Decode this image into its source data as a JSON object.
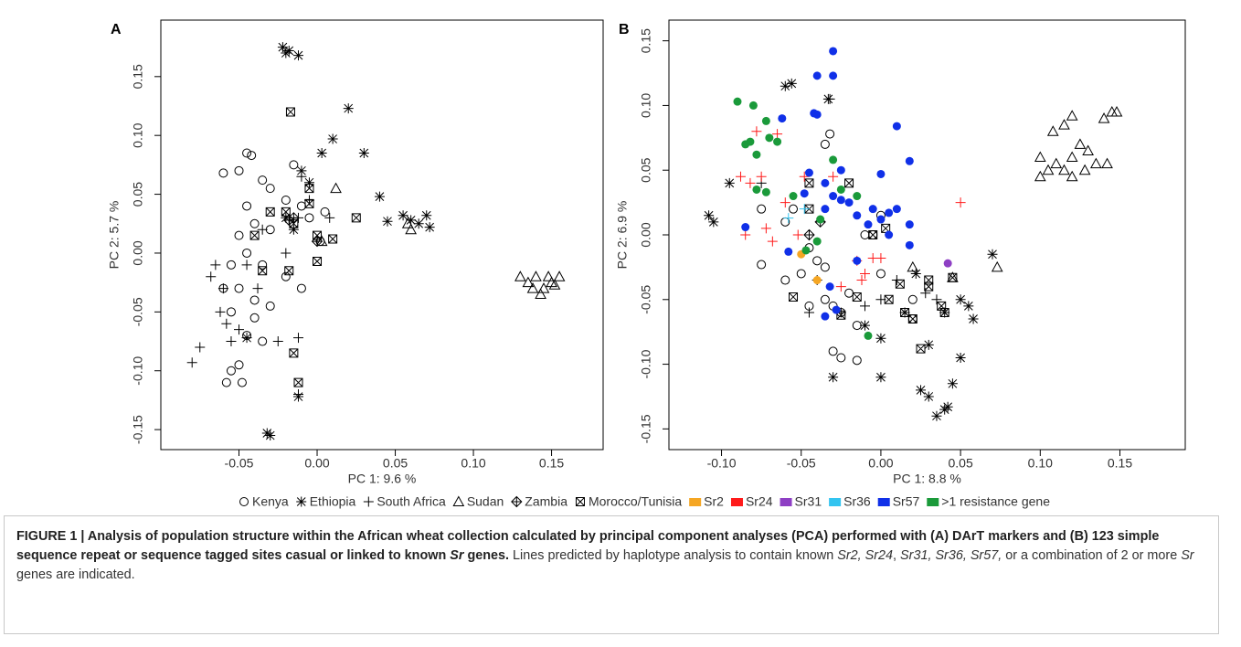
{
  "chart_data": [
    {
      "type": "scatter",
      "panel": "A",
      "xlabel": "PC 1: 9.6 %",
      "ylabel": "PC 2: 5.7 %",
      "xlim": [
        -0.1,
        0.183
      ],
      "ylim": [
        -0.167,
        0.198
      ],
      "xticks": [
        -0.05,
        {
          "value": 0,
          "label": "0.00"
        },
        0.05,
        {
          "value": 0.1,
          "label": "0.10"
        },
        0.15
      ],
      "yticks": [
        -0.15,
        {
          "value": -0.1,
          "label": "-0.10"
        },
        -0.05,
        {
          "value": 0,
          "label": "0.00"
        },
        0.05,
        {
          "value": 0.1,
          "label": "0.10"
        },
        0.15
      ],
      "series": [
        {
          "group": 0,
          "x": [
            -0.045,
            -0.042,
            -0.05,
            -0.06,
            -0.035,
            -0.03,
            -0.045,
            -0.02,
            -0.01,
            -0.04,
            -0.05,
            -0.03,
            -0.005,
            0.005,
            -0.045,
            -0.055,
            -0.035,
            -0.02,
            -0.05,
            -0.04,
            -0.03,
            -0.055,
            -0.04,
            -0.045,
            -0.035,
            -0.055,
            -0.058,
            -0.048,
            -0.05,
            -0.01,
            0.002,
            -0.015,
            -0.06
          ],
          "y": [
            0.085,
            0.083,
            0.07,
            0.068,
            0.062,
            0.055,
            0.04,
            0.045,
            0.04,
            0.025,
            0.015,
            0.02,
            0.03,
            0.035,
            0.0,
            -0.01,
            -0.01,
            -0.02,
            -0.03,
            -0.04,
            -0.045,
            -0.05,
            -0.055,
            -0.07,
            -0.075,
            -0.1,
            -0.11,
            -0.11,
            -0.095,
            -0.03,
            0.01,
            0.075,
            -0.03
          ]
        },
        {
          "group": 1,
          "x": [
            -0.022,
            -0.02,
            -0.018,
            -0.012,
            0.02,
            0.01,
            0.03,
            0.003,
            0.04,
            0.045,
            0.055,
            0.06,
            0.065,
            0.07,
            0.072,
            -0.01,
            -0.005,
            -0.03,
            -0.032,
            -0.012,
            -0.045,
            -0.02,
            -0.015
          ],
          "y": [
            0.175,
            0.17,
            0.172,
            0.168,
            0.123,
            0.097,
            0.085,
            0.085,
            0.048,
            0.027,
            0.032,
            0.028,
            0.025,
            0.032,
            0.022,
            0.07,
            0.06,
            -0.155,
            -0.153,
            -0.122,
            -0.072,
            0.03,
            0.02
          ]
        },
        {
          "group": 2,
          "x": [
            -0.08,
            -0.075,
            -0.068,
            -0.065,
            -0.06,
            -0.062,
            -0.058,
            -0.055,
            -0.05,
            -0.045,
            -0.038,
            -0.025,
            -0.012,
            -0.012,
            -0.035,
            -0.02,
            -0.005,
            0.008,
            -0.012,
            -0.01
          ],
          "y": [
            -0.093,
            -0.08,
            -0.02,
            -0.01,
            -0.03,
            -0.05,
            -0.06,
            -0.075,
            -0.065,
            -0.01,
            -0.03,
            -0.075,
            -0.072,
            -0.12,
            0.02,
            0.0,
            0.045,
            0.03,
            0.03,
            0.065
          ]
        },
        {
          "group": 3,
          "x": [
            0.13,
            0.135,
            0.14,
            0.145,
            0.148,
            0.15,
            0.155,
            0.138,
            0.143,
            0.152,
            0.06,
            0.058,
            0.012,
            0.003
          ],
          "y": [
            -0.02,
            -0.025,
            -0.02,
            -0.03,
            -0.02,
            -0.025,
            -0.02,
            -0.03,
            -0.035,
            -0.027,
            0.02,
            0.025,
            0.055,
            0.01
          ]
        },
        {
          "group": 4,
          "x": [
            -0.018,
            -0.015,
            0.0
          ],
          "y": [
            0.028,
            0.03,
            0.01
          ]
        },
        {
          "group": 5,
          "x": [
            -0.017,
            -0.005,
            -0.005,
            -0.015,
            -0.02,
            0.0,
            0.01,
            0.025,
            -0.035,
            -0.018,
            0.0,
            -0.015,
            -0.012,
            -0.04,
            -0.03
          ],
          "y": [
            0.12,
            0.055,
            0.042,
            0.025,
            0.035,
            0.015,
            0.012,
            0.03,
            -0.015,
            -0.015,
            -0.007,
            -0.085,
            -0.11,
            0.015,
            0.035
          ]
        }
      ]
    },
    {
      "type": "scatter",
      "panel": "B",
      "xlabel": "PC 1: 8.8 %",
      "ylabel": "PC 2: 6.9 %",
      "xlim": [
        -0.133,
        0.191
      ],
      "ylim": [
        -0.166,
        0.166
      ],
      "xticks": [
        {
          "value": -0.1,
          "label": "-0.10"
        },
        -0.05,
        {
          "value": 0,
          "label": "0.00"
        },
        0.05,
        {
          "value": 0.1,
          "label": "0.10"
        },
        0.15
      ],
      "yticks": [
        -0.15,
        {
          "value": -0.1,
          "label": "-0.10"
        },
        -0.05,
        {
          "value": 0,
          "label": "0.00"
        },
        0.05,
        {
          "value": 0.1,
          "label": "0.10"
        },
        0.15
      ],
      "series": [
        {
          "group": 0,
          "x": [
            -0.032,
            -0.035,
            -0.06,
            -0.075,
            -0.06,
            -0.05,
            -0.04,
            -0.035,
            -0.03,
            -0.025,
            -0.02,
            -0.015,
            -0.03,
            -0.025,
            -0.015,
            -0.005,
            0.0,
            0.0,
            0.02,
            -0.045,
            -0.035,
            -0.055,
            -0.01,
            0.02,
            -0.045,
            -0.075
          ],
          "y": [
            0.078,
            0.07,
            0.01,
            -0.023,
            -0.035,
            -0.03,
            -0.02,
            -0.05,
            -0.055,
            -0.06,
            -0.045,
            -0.07,
            -0.09,
            -0.095,
            -0.097,
            0.0,
            0.015,
            -0.03,
            -0.05,
            -0.01,
            -0.025,
            0.02,
            0.0,
            -0.065,
            -0.055,
            0.02
          ]
        },
        {
          "group": 1,
          "x": [
            -0.108,
            -0.105,
            -0.095,
            -0.06,
            -0.056,
            -0.033,
            0.03,
            0.025,
            0.03,
            0.035,
            0.04,
            0.045,
            0.05,
            0.042,
            0.04,
            0.05,
            0.055,
            0.058,
            0.07,
            -0.03,
            0.0,
            0.0,
            -0.01,
            0.015,
            0.022
          ],
          "y": [
            0.015,
            0.01,
            0.04,
            0.115,
            0.117,
            0.105,
            -0.085,
            -0.12,
            -0.125,
            -0.14,
            -0.135,
            -0.115,
            -0.095,
            -0.133,
            -0.06,
            -0.05,
            -0.055,
            -0.065,
            -0.015,
            -0.11,
            -0.11,
            -0.08,
            -0.07,
            -0.06,
            -0.03
          ]
        },
        {
          "group": 2,
          "x": [
            -0.032,
            -0.04,
            -0.045,
            -0.01,
            0.0,
            -0.025,
            0.01,
            0.028,
            0.035,
            -0.075
          ],
          "y": [
            0.105,
            -0.035,
            -0.06,
            -0.055,
            -0.05,
            -0.06,
            -0.035,
            -0.045,
            -0.05,
            0.04
          ]
        },
        {
          "group": 3,
          "x": [
            0.1,
            0.105,
            0.11,
            0.115,
            0.12,
            0.125,
            0.13,
            0.135,
            0.14,
            0.145,
            0.148,
            0.12,
            0.115,
            0.108,
            0.1,
            0.12,
            0.128,
            0.142,
            0.073,
            0.02,
            0.045
          ],
          "y": [
            0.045,
            0.05,
            0.055,
            0.05,
            0.06,
            0.07,
            0.065,
            0.055,
            0.09,
            0.095,
            0.095,
            0.092,
            0.085,
            0.08,
            0.06,
            0.045,
            0.05,
            0.055,
            -0.025,
            -0.025,
            -0.033
          ]
        },
        {
          "group": 4,
          "x": [
            -0.045,
            -0.038
          ],
          "y": [
            0.0,
            0.01
          ]
        },
        {
          "group": 5,
          "x": [
            -0.045,
            -0.045,
            -0.02,
            -0.005,
            0.003,
            -0.055,
            -0.025,
            -0.015,
            0.005,
            0.012,
            0.015,
            0.02,
            0.025,
            0.03,
            0.03,
            0.038,
            0.04,
            0.045
          ],
          "y": [
            0.04,
            0.02,
            0.04,
            0.0,
            0.005,
            -0.048,
            -0.062,
            -0.048,
            -0.05,
            -0.038,
            -0.06,
            -0.065,
            -0.088,
            -0.035,
            -0.04,
            -0.055,
            -0.06,
            -0.033
          ]
        },
        {
          "group": 6,
          "x": [
            -0.05,
            -0.04
          ],
          "y": [
            -0.015,
            -0.035
          ]
        },
        {
          "group": 7,
          "x": [
            -0.088,
            -0.082,
            -0.075,
            -0.078,
            -0.065,
            -0.085,
            -0.072,
            -0.068,
            -0.06,
            -0.048,
            -0.052,
            -0.03,
            -0.015,
            -0.01,
            -0.005,
            0.0,
            -0.025,
            0.05,
            -0.012
          ],
          "y": [
            0.045,
            0.04,
            0.045,
            0.08,
            0.078,
            0.0,
            0.005,
            -0.005,
            0.025,
            0.045,
            0.0,
            0.045,
            -0.02,
            -0.03,
            -0.018,
            -0.018,
            -0.04,
            0.025,
            -0.035
          ]
        },
        {
          "group": 8,
          "x": [
            0.042
          ],
          "y": [
            -0.022
          ]
        },
        {
          "group": 9,
          "x": [
            -0.058,
            -0.048
          ],
          "y": [
            0.013,
            0.02
          ]
        },
        {
          "group": 10,
          "x": [
            -0.03,
            -0.03,
            -0.04,
            -0.04,
            -0.042,
            -0.045,
            -0.035,
            -0.025,
            -0.03,
            -0.025,
            -0.02,
            -0.015,
            -0.008,
            0.0,
            0.01,
            0.018,
            0.005,
            0.01,
            0.018,
            0.018,
            0.005,
            -0.062,
            -0.085,
            -0.058,
            -0.048,
            -0.035,
            -0.032,
            -0.035,
            -0.028,
            -0.015,
            0.0,
            -0.005
          ],
          "y": [
            0.142,
            0.123,
            0.123,
            0.093,
            0.094,
            0.048,
            0.04,
            0.05,
            0.03,
            0.027,
            0.025,
            0.015,
            0.008,
            0.047,
            0.084,
            0.057,
            0.017,
            0.02,
            0.008,
            -0.008,
            0.0,
            0.09,
            0.006,
            -0.013,
            0.032,
            0.02,
            -0.04,
            -0.063,
            -0.058,
            -0.02,
            0.012,
            0.02
          ]
        },
        {
          "group": 11,
          "x": [
            -0.085,
            -0.082,
            -0.078,
            -0.07,
            -0.072,
            -0.065,
            -0.09,
            -0.08,
            -0.055,
            -0.03,
            -0.025,
            -0.015,
            -0.038,
            -0.04,
            -0.047,
            -0.008,
            -0.072,
            -0.078
          ],
          "y": [
            0.07,
            0.072,
            0.062,
            0.075,
            0.088,
            0.072,
            0.103,
            0.1,
            0.03,
            0.058,
            0.035,
            0.03,
            0.012,
            -0.005,
            -0.012,
            -0.078,
            0.033,
            0.035
          ]
        }
      ]
    }
  ],
  "legend": {
    "items": [
      {
        "name": "Kenya",
        "marker": "circle",
        "color": "#000000"
      },
      {
        "name": "Ethiopia",
        "marker": "asterisk",
        "color": "#000000"
      },
      {
        "name": "South Africa",
        "marker": "plus",
        "color": "#000000"
      },
      {
        "name": "Sudan",
        "marker": "triangle",
        "color": "#000000"
      },
      {
        "name": "Zambia",
        "marker": "diamond-plus",
        "color": "#000000"
      },
      {
        "name": "Morocco/Tunisia",
        "marker": "box-x",
        "color": "#000000"
      },
      {
        "name": "Sr2",
        "marker": "dot",
        "color": "#f5a623",
        "legend_symbol": "swatch"
      },
      {
        "name": "Sr24",
        "marker": "plus",
        "color": "#ff1a1a",
        "legend_symbol": "swatch"
      },
      {
        "name": "Sr31",
        "marker": "dot",
        "color": "#8e3fc4",
        "legend_symbol": "swatch"
      },
      {
        "name": "Sr36",
        "marker": "plus",
        "color": "#33c4f0",
        "legend_symbol": "swatch"
      },
      {
        "name": "Sr57",
        "marker": "dot",
        "color": "#1030e8",
        "legend_symbol": "swatch"
      },
      {
        "name": ">1 resistance gene",
        "marker": "dot",
        "color": "#1a9a3a",
        "legend_symbol": "swatch"
      }
    ]
  },
  "caption": {
    "runs": [
      {
        "text": "FIGURE 1 | Analysis of population structure within the African wheat collection calculated by principal component analyses (PCA) performed with (A) DArT markers and (B) 123 simple sequence repeat or sequence tagged sites casual or linked to known ",
        "style": "bold"
      },
      {
        "text": "Sr",
        "style": "bold-italic"
      },
      {
        "text": " genes.",
        "style": "bold"
      },
      {
        "text": " Lines predicted by haplotype analysis to contain known ",
        "style": "normal"
      },
      {
        "text": "Sr2, Sr24",
        "style": "italic"
      },
      {
        "text": ", ",
        "style": "normal"
      },
      {
        "text": "Sr31, Sr36, Sr57,",
        "style": "italic"
      },
      {
        "text": " or a combination of 2 or more ",
        "style": "normal"
      },
      {
        "text": "Sr",
        "style": "italic"
      },
      {
        "text": " genes are indicated.",
        "style": "normal"
      }
    ]
  }
}
